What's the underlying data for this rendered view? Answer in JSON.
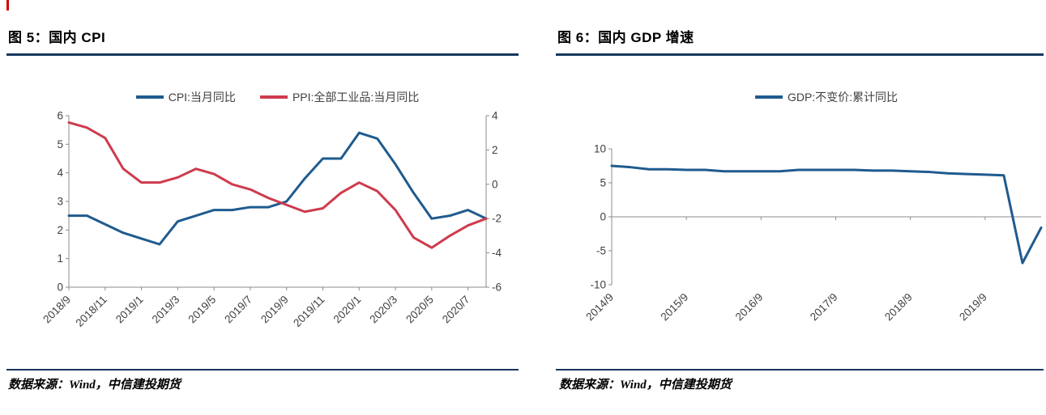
{
  "colors": {
    "rule": "#17375E",
    "corner_mark": "#D00000",
    "axis": "#8C8C8C",
    "tick_text": "#404040",
    "cpi_blue": "#1F5B8E",
    "ppi_red": "#CE3B4D",
    "gdp_blue": "#1F5B8E"
  },
  "figures": [
    {
      "title": "图 5：国内 CPI",
      "source": "数据来源：Wind，中信建投期货"
    },
    {
      "title": "图 6：国内 GDP 增速",
      "source": "数据来源：Wind，中信建投期货"
    }
  ],
  "chart_data": [
    {
      "type": "line",
      "title": "国内 CPI 与 PPI 当月同比",
      "categories": [
        "2018/9",
        "2018/10",
        "2018/11",
        "2018/12",
        "2019/1",
        "2019/2",
        "2019/3",
        "2019/4",
        "2019/5",
        "2019/6",
        "2019/7",
        "2019/8",
        "2019/9",
        "2019/10",
        "2019/11",
        "2019/12",
        "2020/1",
        "2020/2",
        "2020/3",
        "2020/4",
        "2020/5",
        "2020/6",
        "2020/7",
        "2020/8"
      ],
      "x_tick_indices": [
        0,
        2,
        4,
        6,
        8,
        10,
        12,
        14,
        16,
        18,
        20,
        22
      ],
      "x_tick_labels": [
        "2018/9",
        "2018/11",
        "2019/1",
        "2019/3",
        "2019/5",
        "2019/7",
        "2019/9",
        "2019/11",
        "2020/1",
        "2020/3",
        "2020/5",
        "2020/7"
      ],
      "left_axis": {
        "min": 0,
        "max": 6,
        "ticks": [
          0,
          1,
          2,
          3,
          4,
          5,
          6
        ]
      },
      "right_axis": {
        "min": -6,
        "max": 4,
        "ticks": [
          -6,
          -4,
          -2,
          0,
          2,
          4
        ]
      },
      "x_axis_value": 0,
      "grid": false,
      "legend_position": "top",
      "series": [
        {
          "name": "CPI:当月同比",
          "axis": "left",
          "color": "#1F5B8E",
          "values": [
            2.5,
            2.5,
            2.2,
            1.9,
            1.7,
            1.5,
            2.3,
            2.5,
            2.7,
            2.7,
            2.8,
            2.8,
            3.0,
            3.8,
            4.5,
            4.5,
            5.4,
            5.2,
            4.3,
            3.3,
            2.4,
            2.5,
            2.7,
            2.4
          ]
        },
        {
          "name": "PPI:全部工业品:当月同比",
          "axis": "right",
          "color": "#CE3B4D",
          "values": [
            3.6,
            3.3,
            2.7,
            0.9,
            0.1,
            0.1,
            0.4,
            0.9,
            0.6,
            0.0,
            -0.3,
            -0.8,
            -1.2,
            -1.6,
            -1.4,
            -0.5,
            0.1,
            -0.4,
            -1.5,
            -3.1,
            -3.7,
            -3.0,
            -2.4,
            -2.0
          ]
        }
      ]
    },
    {
      "type": "line",
      "title": "国内 GDP 增速",
      "categories": [
        "2014/9",
        "2014/12",
        "2015/3",
        "2015/6",
        "2015/9",
        "2015/12",
        "2016/3",
        "2016/6",
        "2016/9",
        "2016/12",
        "2017/3",
        "2017/6",
        "2017/9",
        "2017/12",
        "2018/3",
        "2018/6",
        "2018/9",
        "2018/12",
        "2019/3",
        "2019/6",
        "2019/9",
        "2019/12",
        "2020/3",
        "2020/6"
      ],
      "x_tick_indices": [
        0,
        4,
        8,
        12,
        16,
        20
      ],
      "x_tick_labels": [
        "2014/9",
        "2015/9",
        "2016/9",
        "2017/9",
        "2018/9",
        "2019/9"
      ],
      "left_axis": {
        "min": -10,
        "max": 10,
        "ticks": [
          -10,
          -5,
          0,
          5,
          10
        ]
      },
      "x_axis_value": 0,
      "grid": false,
      "legend_position": "top",
      "series": [
        {
          "name": "GDP:不变价:累计同比",
          "axis": "left",
          "color": "#1F5B8E",
          "values": [
            7.5,
            7.3,
            7.0,
            7.0,
            6.9,
            6.9,
            6.7,
            6.7,
            6.7,
            6.7,
            6.9,
            6.9,
            6.9,
            6.9,
            6.8,
            6.8,
            6.7,
            6.6,
            6.4,
            6.3,
            6.2,
            6.1,
            -6.8,
            -1.6
          ]
        }
      ]
    }
  ]
}
